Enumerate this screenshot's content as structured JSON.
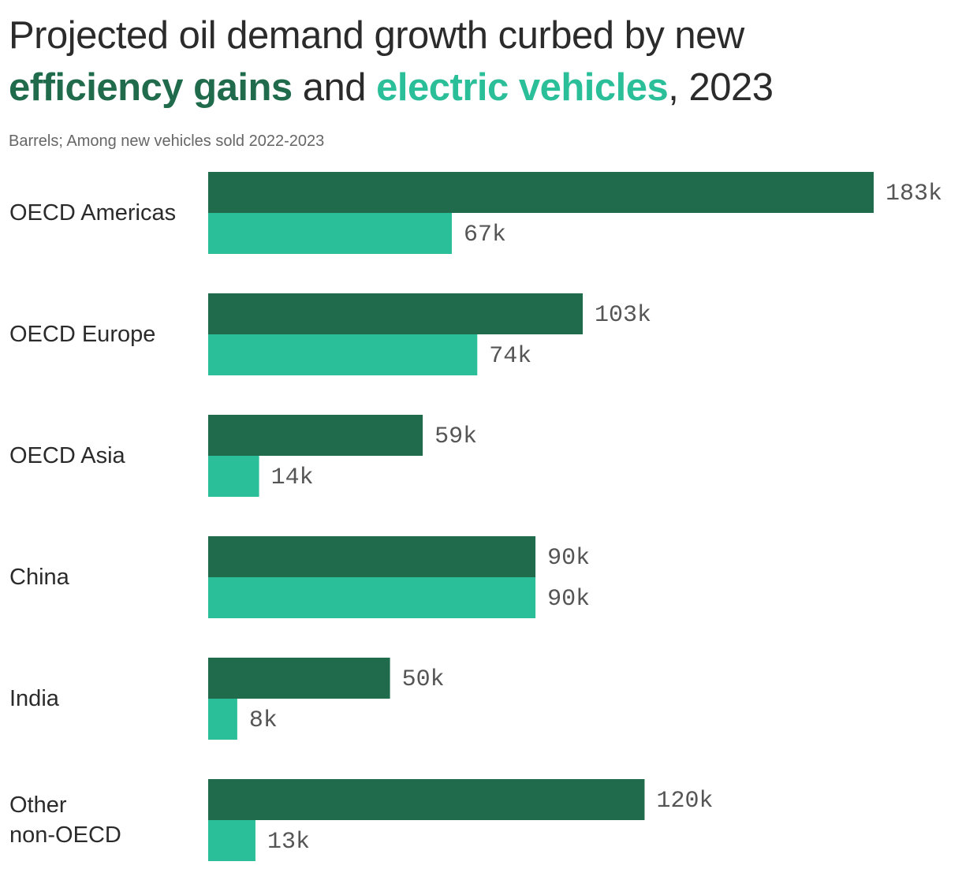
{
  "title": {
    "line1": "Projected oil demand growth curbed by new",
    "highlight_efficiency": "efficiency gains",
    "connector": " and ",
    "highlight_ev": "electric vehicles",
    "suffix": ", 2023"
  },
  "subtitle": "Barrels; Among new vehicles sold 2022-2023",
  "colors": {
    "efficiency": "#1f6b4b",
    "ev": "#2bbf99"
  },
  "chart_data": {
    "type": "bar",
    "orientation": "horizontal",
    "categories": [
      "OECD Americas",
      "OECD Europe",
      "OECD Asia",
      "China",
      "India",
      "Other non-OECD"
    ],
    "category_lines": [
      [
        "OECD Americas"
      ],
      [
        "OECD Europe"
      ],
      [
        "OECD Asia"
      ],
      [
        "China"
      ],
      [
        "India"
      ],
      [
        "Other",
        "non-OECD"
      ]
    ],
    "series": [
      {
        "name": "efficiency gains",
        "values": [
          183,
          103,
          59,
          90,
          50,
          120
        ],
        "labels": [
          "183k",
          "103k",
          "59k",
          "90k",
          "50k",
          "120k"
        ]
      },
      {
        "name": "electric vehicles",
        "values": [
          67,
          74,
          14,
          90,
          8,
          13
        ],
        "labels": [
          "67k",
          "74k",
          "14k",
          "90k",
          "8k",
          "13k"
        ]
      }
    ],
    "units": "Barrels (thousands)",
    "xlim": [
      0,
      183
    ],
    "grid": false,
    "legend": "none (colors in title)"
  }
}
